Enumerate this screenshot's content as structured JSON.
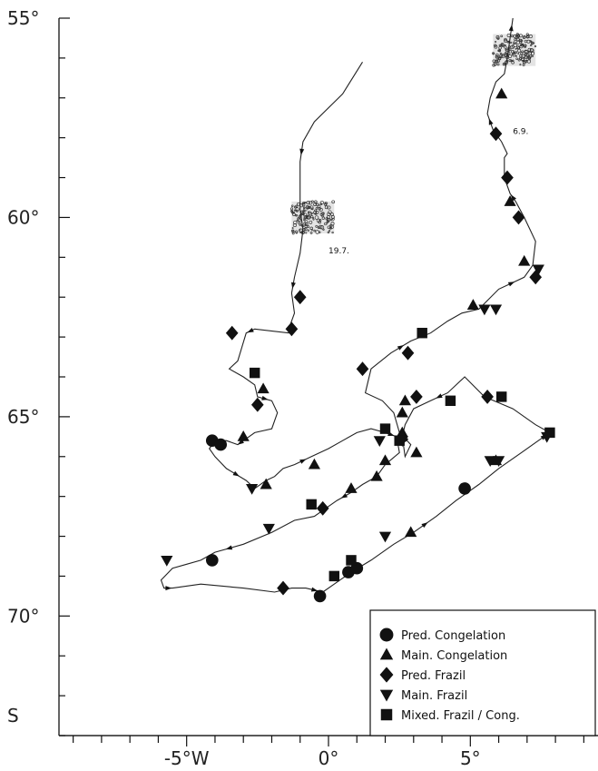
{
  "chart_data": {
    "type": "scatter",
    "x_unit": "degrees longitude",
    "y_unit": "degrees latitude",
    "xlim": [
      -9.5,
      9.5
    ],
    "ylim": [
      73,
      55
    ],
    "x_ticks": [
      -9,
      -8,
      -7,
      -6,
      -5,
      -4,
      -3,
      -2,
      -1,
      0,
      1,
      2,
      3,
      4,
      5,
      6,
      7,
      8,
      9
    ],
    "y_ticks": [
      55,
      56,
      57,
      58,
      59,
      60,
      61,
      62,
      63,
      64,
      65,
      66,
      67,
      68,
      69,
      70,
      71,
      72,
      73
    ],
    "x_tick_labels": [
      {
        "x": -5,
        "label": "-5°W"
      },
      {
        "x": 0,
        "label": "0°"
      },
      {
        "x": 5,
        "label": "5°"
      }
    ],
    "y_tick_labels": [
      {
        "y": 55,
        "label": "55°"
      },
      {
        "y": 60,
        "label": "60°"
      },
      {
        "y": 65,
        "label": "65°"
      },
      {
        "y": 70,
        "label": "70°"
      },
      {
        "y": 72.5,
        "label": "S"
      }
    ],
    "annotations": [
      {
        "text": "19.7.",
        "x": 0.0,
        "y": 60.9
      },
      {
        "text": "6.9.",
        "x": 6.5,
        "y": 57.9
      }
    ],
    "ice_edges": [
      {
        "x": [
          -1.3,
          0.2
        ],
        "y": [
          59.6,
          60.4
        ]
      },
      {
        "x": [
          5.8,
          7.3
        ],
        "y": [
          55.4,
          56.2
        ]
      }
    ],
    "track": {
      "x": [
        1.2,
        0.5,
        -0.5,
        -0.9,
        -1.0,
        -1.0,
        -1.0,
        -0.9,
        -1.0,
        -1.2,
        -1.3,
        -1.2,
        -1.4,
        -1.3,
        -1.4,
        -2.6,
        -2.9,
        -3.2,
        -3.5,
        -3.0,
        -2.6,
        -2.5,
        -2.0,
        -1.8,
        -2.0,
        -2.6,
        -2.8,
        -3.0,
        -3.2,
        -3.6,
        -4.0,
        -4.2,
        -4.0,
        -3.6,
        -2.9,
        -2.6,
        -2.2,
        -1.9,
        -1.6,
        -1.2,
        -0.6,
        0.0,
        0.5,
        1.0,
        1.5,
        2.0,
        2.4,
        2.5,
        2.0,
        1.7,
        1.2,
        0.8,
        0.3,
        -0.1,
        -0.5,
        -1.2,
        -2.0,
        -3.0,
        -4.0,
        -4.5,
        -5.0,
        -5.5,
        -5.9,
        -5.8,
        -5.5,
        -4.5,
        -3.0,
        -1.9,
        -1.3,
        -0.8,
        -0.2,
        0.2,
        0.8,
        1.5,
        2.3,
        3.0,
        3.8,
        4.5,
        5.3,
        6.0,
        6.8,
        7.4,
        7.8,
        7.3,
        6.5,
        5.5,
        4.8,
        4.2,
        3.6,
        3.0,
        2.7,
        2.6,
        2.7,
        2.9,
        2.5,
        2.3,
        1.9,
        1.3,
        1.5,
        2.2,
        2.9,
        3.6,
        4.2,
        4.7,
        5.3,
        6.0,
        6.9,
        7.2,
        7.3,
        7.1,
        6.9,
        6.6,
        6.4,
        6.2,
        6.2,
        6.3,
        6.1,
        5.8,
        5.6,
        5.7,
        5.9,
        6.2,
        6.3,
        6.4,
        6.5
      ],
      "y": [
        56.1,
        56.9,
        57.6,
        58.1,
        58.6,
        59.2,
        59.8,
        60.3,
        60.9,
        61.5,
        61.9,
        62.4,
        62.8,
        62.8,
        62.9,
        62.8,
        62.9,
        63.6,
        63.8,
        64.0,
        64.2,
        64.5,
        64.6,
        64.9,
        65.3,
        65.4,
        65.5,
        65.6,
        65.7,
        65.6,
        65.6,
        65.8,
        66.0,
        66.3,
        66.6,
        66.8,
        66.6,
        66.5,
        66.3,
        66.2,
        66.0,
        65.8,
        65.6,
        65.4,
        65.3,
        65.4,
        65.5,
        65.9,
        66.2,
        66.5,
        66.7,
        66.9,
        67.1,
        67.3,
        67.5,
        67.6,
        67.9,
        68.2,
        68.4,
        68.6,
        68.7,
        68.8,
        69.1,
        69.3,
        69.3,
        69.2,
        69.3,
        69.4,
        69.3,
        69.3,
        69.4,
        69.2,
        68.9,
        68.6,
        68.2,
        67.9,
        67.5,
        67.1,
        66.7,
        66.3,
        65.9,
        65.6,
        65.4,
        65.2,
        64.8,
        64.5,
        64.0,
        64.4,
        64.6,
        64.8,
        65.2,
        65.5,
        66.0,
        65.7,
        65.4,
        64.9,
        64.6,
        64.4,
        63.8,
        63.4,
        63.1,
        62.9,
        62.6,
        62.4,
        62.3,
        61.8,
        61.5,
        61.2,
        60.6,
        60.3,
        60.0,
        59.6,
        59.4,
        59.0,
        58.5,
        58.4,
        58.1,
        57.8,
        57.4,
        57.0,
        56.6,
        56.4,
        56.0,
        55.5,
        55.0
      ]
    },
    "series": [
      {
        "name": "Pred.  Congelation",
        "marker": "circle",
        "points": [
          [
            -4.1,
            65.6
          ],
          [
            -3.8,
            65.7
          ],
          [
            -4.1,
            68.6
          ],
          [
            -0.3,
            69.5
          ],
          [
            0.7,
            68.9
          ],
          [
            1.0,
            68.8
          ],
          [
            4.8,
            66.8
          ]
        ]
      },
      {
        "name": "Main.  Congelation",
        "marker": "triangle",
        "points": [
          [
            -2.3,
            64.3
          ],
          [
            -3.0,
            65.5
          ],
          [
            -2.2,
            66.7
          ],
          [
            -0.5,
            66.2
          ],
          [
            0.8,
            66.8
          ],
          [
            1.7,
            66.5
          ],
          [
            3.1,
            65.9
          ],
          [
            2.6,
            65.4
          ],
          [
            2.6,
            64.9
          ],
          [
            2.7,
            64.6
          ],
          [
            2.0,
            66.1
          ],
          [
            2.9,
            67.9
          ],
          [
            5.9,
            66.1
          ],
          [
            5.1,
            62.2
          ],
          [
            6.1,
            56.9
          ],
          [
            6.9,
            61.1
          ],
          [
            6.4,
            59.6
          ]
        ]
      },
      {
        "name": "Pred.  Frazil",
        "marker": "diamond",
        "points": [
          [
            -1.0,
            62.0
          ],
          [
            -1.3,
            62.8
          ],
          [
            -3.4,
            62.9
          ],
          [
            -2.5,
            64.7
          ],
          [
            -0.2,
            67.3
          ],
          [
            -1.6,
            69.3
          ],
          [
            1.2,
            63.8
          ],
          [
            2.8,
            63.4
          ],
          [
            3.1,
            64.5
          ],
          [
            5.6,
            64.5
          ],
          [
            7.3,
            61.5
          ],
          [
            6.7,
            60.0
          ],
          [
            6.3,
            59.0
          ],
          [
            5.9,
            57.9
          ]
        ]
      },
      {
        "name": "Main.  Frazil",
        "marker": "triangle-down",
        "points": [
          [
            -2.7,
            66.8
          ],
          [
            -2.1,
            67.8
          ],
          [
            -5.7,
            68.6
          ],
          [
            1.8,
            65.6
          ],
          [
            2.6,
            65.6
          ],
          [
            2.0,
            68.0
          ],
          [
            5.7,
            66.1
          ],
          [
            6.0,
            66.1
          ],
          [
            7.7,
            65.5
          ],
          [
            5.9,
            62.3
          ],
          [
            5.5,
            62.3
          ],
          [
            7.4,
            61.3
          ]
        ]
      },
      {
        "name": "Mixed.  Frazil / Cong.",
        "marker": "square",
        "points": [
          [
            -2.6,
            63.9
          ],
          [
            -0.6,
            67.2
          ],
          [
            0.2,
            69.0
          ],
          [
            0.8,
            68.6
          ],
          [
            2.0,
            65.3
          ],
          [
            2.5,
            65.6
          ],
          [
            3.3,
            62.9
          ],
          [
            4.3,
            64.6
          ],
          [
            6.1,
            64.5
          ],
          [
            7.8,
            65.4
          ]
        ]
      }
    ],
    "legend": {
      "position": "bottom-right",
      "entries": [
        {
          "marker": "circle",
          "label": "Pred.  Congelation"
        },
        {
          "marker": "triangle",
          "label": "Main.  Congelation"
        },
        {
          "marker": "diamond",
          "label": "Pred.  Frazil"
        },
        {
          "marker": "triangle-down",
          "label": "Main.  Frazil"
        },
        {
          "marker": "square",
          "label": "Mixed.  Frazil / Cong."
        }
      ]
    },
    "colors": {
      "ink": "#111111",
      "axis": "#222222",
      "background": "#ffffff"
    }
  }
}
